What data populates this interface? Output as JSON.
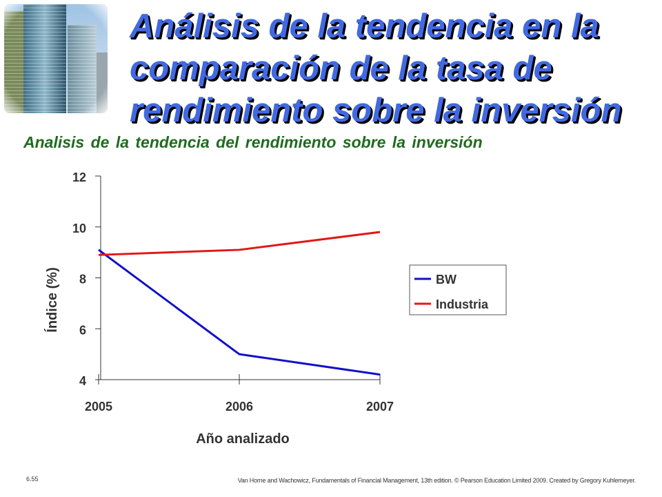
{
  "slide": {
    "title": "Análisis de la tendencia en la comparación de la tasa de rendimiento sobre la inversión",
    "subtitle": "Analisis de la tendencia del rendimiento sobre la inversión",
    "page_number": "6.55",
    "credit": "Van Horne and Wachowicz, Fundamentals of Financial Management, 13th edition. © Pearson Education Limited 2009. Created by Gregory Kuhlemeyer."
  },
  "chart_data": {
    "type": "line",
    "title": "Analisis de la tendencia del rendimiento sobre la inversión",
    "xlabel": "Año analizado",
    "ylabel": "Índice (%)",
    "categories": [
      "2005",
      "2006",
      "2007"
    ],
    "ylim": [
      4,
      12
    ],
    "yticks": [
      "4",
      "6",
      "8",
      "10",
      "12"
    ],
    "legend_position": "right",
    "grid": false,
    "series": [
      {
        "name": "BW",
        "color": "#1010c8",
        "values": [
          9.1,
          5.0,
          4.2
        ]
      },
      {
        "name": "Industria",
        "color": "#e01818",
        "values": [
          8.9,
          9.1,
          9.8
        ]
      }
    ]
  }
}
